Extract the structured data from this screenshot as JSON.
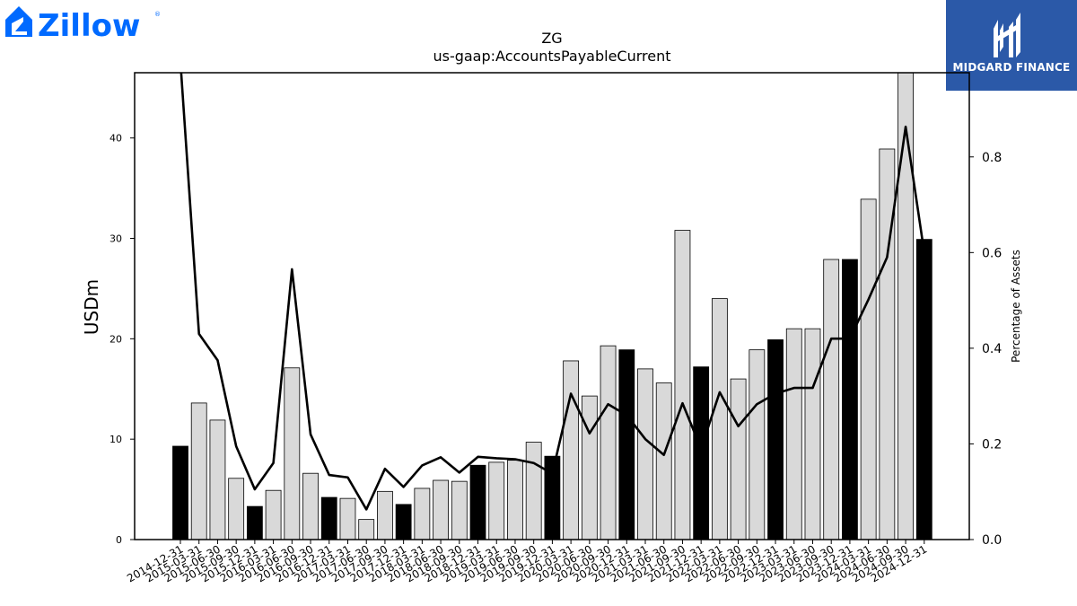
{
  "brand": {
    "company_logo_text": "Zillow",
    "company_logo_color": "#006aff",
    "publisher_badge_text": "MIDGARD FINANCE",
    "publisher_badge_color": "#2b59a8"
  },
  "chart_data": {
    "type": "bar",
    "title": "ZG",
    "subtitle": "us-gaap:AccountsPayableCurrent",
    "ylabel": "USDm",
    "ylabel_right": "Percentage of Assets",
    "ylim": [
      0,
      46.5
    ],
    "ylim_right": [
      0,
      0.976
    ],
    "yticks": [
      0,
      10,
      20,
      30,
      40
    ],
    "yticks_right": [
      0.0,
      0.2,
      0.4,
      0.6,
      0.8
    ],
    "grid": false,
    "categories": [
      "2014-12-31",
      "2015-03-31",
      "2015-06-30",
      "2015-09-30",
      "2015-12-31",
      "2016-03-31",
      "2016-06-30",
      "2016-09-30",
      "2016-12-31",
      "2017-03-31",
      "2017-06-30",
      "2017-09-30",
      "2017-12-31",
      "2018-03-31",
      "2018-06-30",
      "2018-09-30",
      "2018-12-31",
      "2019-03-31",
      "2019-06-30",
      "2019-09-30",
      "2019-12-31",
      "2020-03-31",
      "2020-06-30",
      "2020-09-30",
      "2020-12-31",
      "2021-03-31",
      "2021-06-30",
      "2021-09-30",
      "2021-12-31",
      "2022-03-31",
      "2022-06-30",
      "2022-09-30",
      "2022-12-31",
      "2023-03-31",
      "2023-06-30",
      "2023-09-30",
      "2023-12-31",
      "2024-03-31",
      "2024-06-30",
      "2024-09-30",
      "2024-12-31"
    ],
    "series": [
      {
        "type": "bar",
        "axis": "left",
        "values": [
          9.3,
          13.6,
          11.9,
          6.1,
          3.3,
          4.9,
          17.1,
          6.6,
          4.2,
          4.1,
          2.0,
          4.8,
          3.5,
          5.1,
          5.9,
          5.8,
          7.4,
          7.7,
          7.9,
          9.7,
          8.3,
          17.8,
          14.3,
          19.3,
          18.9,
          17.0,
          15.6,
          30.8,
          17.2,
          24.0,
          16.0,
          18.9,
          19.9,
          21.0,
          21.0,
          27.9,
          27.9,
          33.9,
          38.9,
          46.5,
          29.9
        ],
        "year_end_highlight": [
          true,
          false,
          false,
          false,
          true,
          false,
          false,
          false,
          true,
          false,
          false,
          false,
          true,
          false,
          false,
          false,
          true,
          false,
          false,
          false,
          true,
          false,
          false,
          false,
          true,
          false,
          false,
          false,
          true,
          false,
          false,
          false,
          true,
          false,
          false,
          false,
          true,
          false,
          false,
          false,
          true
        ],
        "color": "#d9d9d9",
        "highlight_color": "#000000"
      },
      {
        "type": "line",
        "axis": "right",
        "values": [
          1.0,
          0.43,
          0.375,
          0.195,
          0.105,
          0.16,
          0.565,
          0.22,
          0.135,
          0.13,
          0.063,
          0.148,
          0.11,
          0.155,
          0.172,
          0.14,
          0.173,
          0.17,
          0.168,
          0.16,
          0.138,
          0.305,
          0.222,
          0.283,
          0.26,
          0.21,
          0.177,
          0.285,
          0.19,
          0.308,
          0.237,
          0.283,
          0.305,
          0.317,
          0.317,
          0.42,
          0.42,
          0.502,
          0.59,
          0.863,
          0.6
        ],
        "color": "#000000"
      }
    ]
  }
}
